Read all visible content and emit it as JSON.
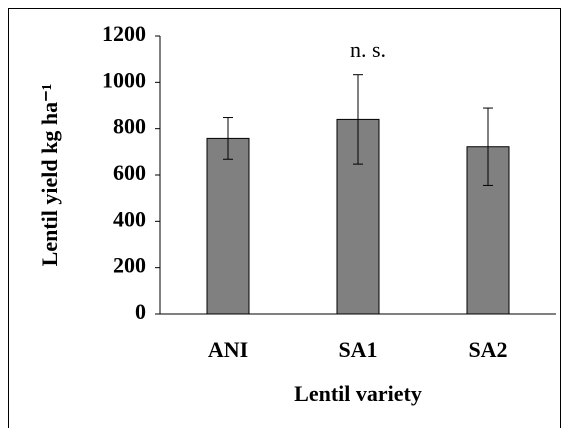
{
  "chart_data": {
    "type": "bar",
    "categories": [
      "ANI",
      "SA1",
      "SA2"
    ],
    "values": [
      758,
      840,
      722
    ],
    "errors": [
      90,
      193,
      167
    ],
    "color": "#808080",
    "ylabel": "Lentil yield kg ha⁻¹",
    "xlabel": "Lentil variety",
    "annotation": "n. s.",
    "ylim": [
      0,
      1200
    ],
    "yticks": [
      0,
      200,
      400,
      600,
      800,
      1000,
      1200
    ],
    "grid": false
  }
}
